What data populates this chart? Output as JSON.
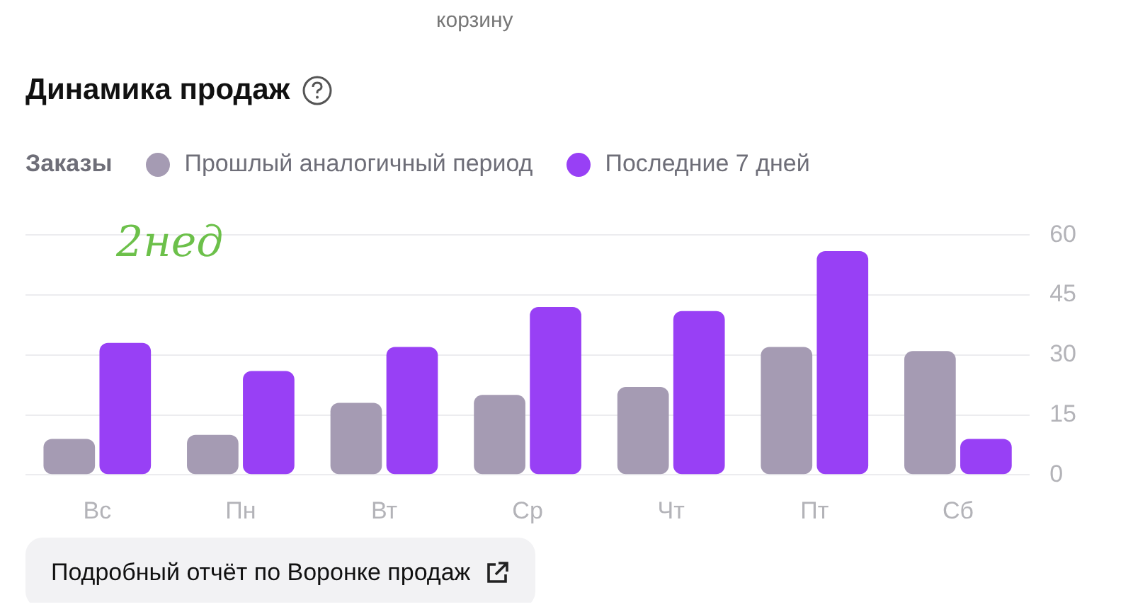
{
  "chart_data": {
    "type": "bar",
    "title": "Динамика продаж",
    "legend_title": "Заказы",
    "categories": [
      "Вс",
      "Пн",
      "Вт",
      "Ср",
      "Чт",
      "Пт",
      "Сб"
    ],
    "series": [
      {
        "name": "Прошлый аналогичный период",
        "color": "#a59bb3",
        "values": [
          9,
          10,
          18,
          20,
          22,
          32,
          31
        ]
      },
      {
        "name": "Последние 7 дней",
        "color": "#9840f5",
        "values": [
          33,
          26,
          32,
          42,
          41,
          56,
          9
        ]
      }
    ],
    "ylim": [
      0,
      60
    ],
    "yticks": [
      0,
      15,
      30,
      45,
      60
    ],
    "grid": "y",
    "legend": "top left",
    "annotations": [
      "корзину",
      "2нед",
      "Подробный отчёт по Воронке продаж"
    ]
  }
}
